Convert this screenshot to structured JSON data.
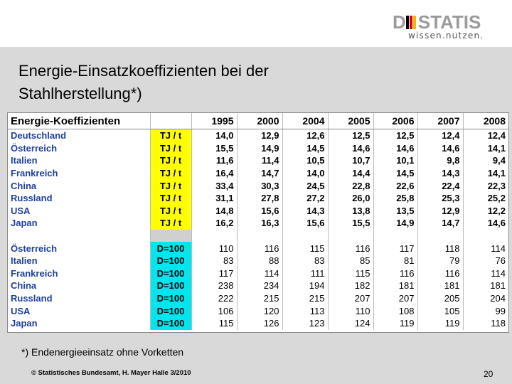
{
  "logo": {
    "text": "DESTATIS",
    "slogan": "wissen.nutzen.",
    "colors": {
      "gray": "#9b9b9b",
      "black": "#000000",
      "red": "#d9001b",
      "gold": "#f2b800"
    }
  },
  "title": {
    "line1": "Energie-Einsatzkoeffizienten bei der",
    "line2": "Stahlherstellung*)"
  },
  "table": {
    "header_label": "Energie-Koeffizienten",
    "years": [
      "1995",
      "2000",
      "2004",
      "2005",
      "2006",
      "2007",
      "2008"
    ],
    "section1": [
      {
        "country": "Deutschland",
        "unit": "TJ / t",
        "values": [
          "14,0",
          "12,9",
          "12,6",
          "12,5",
          "12,5",
          "12,4",
          "12,4"
        ]
      },
      {
        "country": "Österreich",
        "unit": "TJ / t",
        "values": [
          "15,5",
          "14,9",
          "14,5",
          "14,6",
          "14,6",
          "14,6",
          "14,1"
        ]
      },
      {
        "country": "Italien",
        "unit": "TJ / t",
        "values": [
          "11,6",
          "11,4",
          "10,5",
          "10,7",
          "10,1",
          "9,8",
          "9,4"
        ]
      },
      {
        "country": "Frankreich",
        "unit": "TJ / t",
        "values": [
          "16,4",
          "14,7",
          "14,0",
          "14,4",
          "14,5",
          "14,3",
          "14,1"
        ]
      },
      {
        "country": "China",
        "unit": "TJ / t",
        "values": [
          "33,4",
          "30,3",
          "24,5",
          "22,8",
          "22,6",
          "22,4",
          "22,3"
        ]
      },
      {
        "country": "Russland",
        "unit": "TJ / t",
        "values": [
          "31,1",
          "27,8",
          "27,2",
          "26,0",
          "25,8",
          "25,3",
          "25,2"
        ]
      },
      {
        "country": "USA",
        "unit": "TJ / t",
        "values": [
          "14,8",
          "15,6",
          "14,3",
          "13,8",
          "13,5",
          "12,9",
          "12,2"
        ]
      },
      {
        "country": "Japan",
        "unit": "TJ / t",
        "values": [
          "16,2",
          "16,3",
          "15,6",
          "15,5",
          "14,9",
          "14,7",
          "14,6"
        ]
      }
    ],
    "section2": [
      {
        "country": "Österreich",
        "unit": "D=100",
        "values": [
          "110",
          "116",
          "115",
          "116",
          "117",
          "118",
          "114"
        ]
      },
      {
        "country": "Italien",
        "unit": "D=100",
        "values": [
          "83",
          "88",
          "83",
          "85",
          "81",
          "79",
          "76"
        ]
      },
      {
        "country": "Frankreich",
        "unit": "D=100",
        "values": [
          "117",
          "114",
          "111",
          "115",
          "116",
          "116",
          "114"
        ]
      },
      {
        "country": "China",
        "unit": "D=100",
        "values": [
          "238",
          "234",
          "194",
          "182",
          "181",
          "181",
          "181"
        ]
      },
      {
        "country": "Russland",
        "unit": "D=100",
        "values": [
          "222",
          "215",
          "215",
          "207",
          "207",
          "205",
          "204"
        ]
      },
      {
        "country": "USA",
        "unit": "D=100",
        "values": [
          "106",
          "120",
          "113",
          "110",
          "108",
          "105",
          "99"
        ]
      },
      {
        "country": "Japan",
        "unit": "D=100",
        "values": [
          "115",
          "126",
          "123",
          "124",
          "119",
          "119",
          "118"
        ]
      }
    ],
    "unit_colors": {
      "tj": "#ffff00",
      "index": "#00e5ee"
    }
  },
  "footnote": "*) Endenergieeinsatz ohne Vorketten",
  "copyright": "© Statistisches Bundesamt, H. Mayer Halle 3/2010",
  "page_number": "20"
}
